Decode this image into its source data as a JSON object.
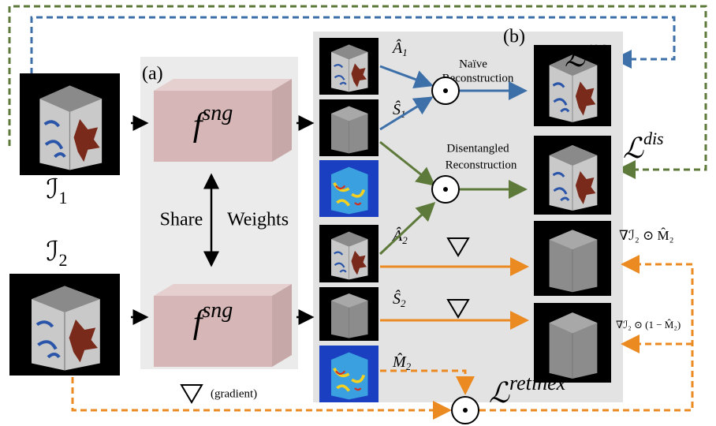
{
  "panels": {
    "a": "(a)",
    "b": "(b)"
  },
  "encoders": [
    {
      "base": "f",
      "sup": "sng"
    },
    {
      "base": "f",
      "sup": "sng"
    }
  ],
  "share_weights": [
    "Share",
    "Weights"
  ],
  "inputs": [
    {
      "base": "ℐ",
      "sub": "1"
    },
    {
      "base": "ℐ",
      "sub": "2"
    }
  ],
  "outputs": [
    {
      "base": "Â",
      "sub": "1"
    },
    {
      "base": "Ŝ",
      "sub": "1"
    },
    {
      "base": "Â",
      "sub": "2"
    },
    {
      "base": "Ŝ",
      "sub": "2"
    },
    {
      "base": "M̂",
      "sub": "2"
    }
  ],
  "operations": [
    [
      "Naïve",
      "Reconstruction"
    ],
    [
      "Disentangled",
      "Reconstruction"
    ]
  ],
  "losses": [
    {
      "base": "ℒ",
      "sup": "rec"
    },
    {
      "base": "ℒ",
      "sup": "dis"
    },
    {
      "base": "ℒ",
      "sup": "retinex"
    }
  ],
  "gradient_labels": [
    "∇ℐ₂ ⊙ M̂₂",
    "∇ℐ₂ ⊙ (1 − M̂₂)"
  ],
  "legend": "(gradient)"
}
